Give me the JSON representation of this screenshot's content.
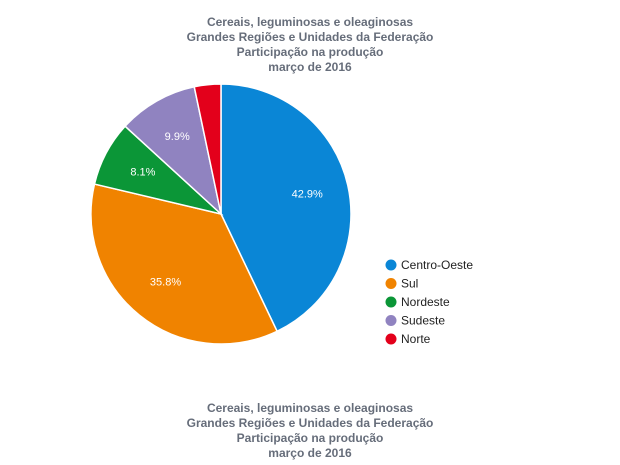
{
  "chart_data": {
    "type": "pie",
    "title": [
      "Cereais, leguminosas e oleaginosas",
      "Grandes Regiões e Unidades da Federação",
      "Participação na produção",
      "março de 2016"
    ],
    "slices": [
      {
        "name": "Centro-Oeste",
        "value": 42.9,
        "label": "42.9%",
        "color": "#0a86d6"
      },
      {
        "name": "Sul",
        "value": 35.8,
        "label": "35.8%",
        "color": "#f08300"
      },
      {
        "name": "Nordeste",
        "value": 8.1,
        "label": "8.1%",
        "color": "#0b9637"
      },
      {
        "name": "Sudeste",
        "value": 9.9,
        "label": "9.9%",
        "color": "#9083c0"
      },
      {
        "name": "Norte",
        "value": 3.3,
        "label": "",
        "color": "#e3001b"
      }
    ],
    "legend_position": "right"
  },
  "bottom_title": [
    "Cereais, leguminosas e oleaginosas",
    "Grandes Regiões e Unidades da Federação",
    "Participação na produção",
    "março de 2016"
  ]
}
